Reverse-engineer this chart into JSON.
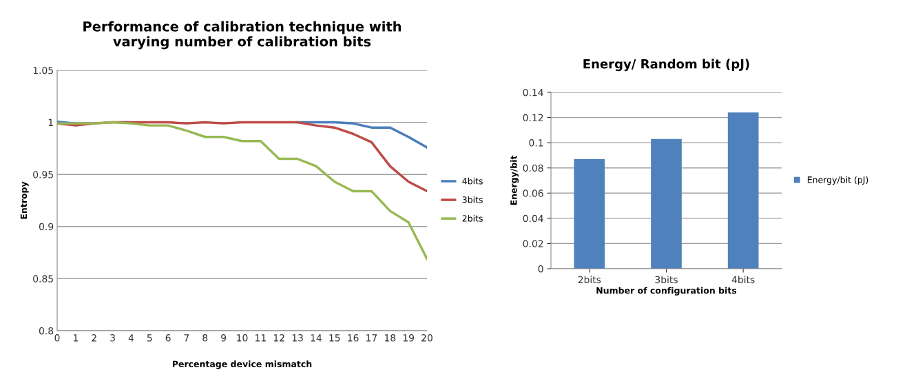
{
  "chart_data": [
    {
      "type": "line",
      "title": "Performance of calibration technique with\nvarying number of calibration bits",
      "xlabel": "Percentage device mismatch",
      "ylabel": "Entropy",
      "x": [
        0,
        1,
        2,
        3,
        4,
        5,
        6,
        7,
        8,
        9,
        10,
        11,
        12,
        13,
        14,
        15,
        16,
        17,
        18,
        19,
        20
      ],
      "series": [
        {
          "name": "4bits",
          "color": "#4a7ebb",
          "values": [
            1.0005,
            0.999,
            null,
            null,
            null,
            null,
            null,
            null,
            null,
            null,
            null,
            null,
            null,
            1,
            1,
            1,
            0.999,
            0.995,
            0.995,
            0.986,
            0.976
          ]
        },
        {
          "name": "3bits",
          "color": "#be4b48",
          "values": [
            0.999,
            0.997,
            0.999,
            1,
            1,
            1,
            1,
            0.999,
            1,
            0.999,
            1,
            1,
            1,
            1,
            0.997,
            0.995,
            0.989,
            0.981,
            0.958,
            0.943,
            0.934
          ]
        },
        {
          "name": "2bits",
          "color": "#98b954",
          "values": [
            0.999,
            0.999,
            0.999,
            1,
            0.999,
            0.997,
            0.997,
            0.992,
            0.986,
            0.986,
            0.982,
            0.982,
            0.965,
            0.965,
            0.958,
            0.943,
            0.934,
            0.934,
            0.915,
            0.904,
            0.869
          ]
        }
      ],
      "xlim": [
        0,
        20
      ],
      "xticks": [
        0,
        1,
        2,
        3,
        4,
        5,
        6,
        7,
        8,
        9,
        10,
        11,
        12,
        13,
        14,
        15,
        16,
        17,
        18,
        19,
        20
      ],
      "ylim": [
        0.8,
        1.05
      ],
      "yticks": [
        0.8,
        0.85,
        0.9,
        0.95,
        1,
        1.05
      ],
      "grid": "y",
      "legend": "right",
      "marker": "none",
      "line_style": "solid"
    },
    {
      "type": "bar",
      "title": "Energy/ Random bit (pJ)",
      "xlabel": "Number of configuration bits",
      "ylabel": "Energy/bit",
      "categories": [
        "2bits",
        "3bits",
        "4bits"
      ],
      "series": [
        {
          "name": "Energy/bit (pJ)",
          "color": "#4f81bd",
          "values": [
            0.087,
            0.103,
            0.124
          ]
        }
      ],
      "ylim": [
        0,
        0.14
      ],
      "yticks": [
        0,
        0.02,
        0.04,
        0.06,
        0.08,
        0.1,
        0.12,
        0.14
      ],
      "grid": "y",
      "legend": "right"
    }
  ]
}
